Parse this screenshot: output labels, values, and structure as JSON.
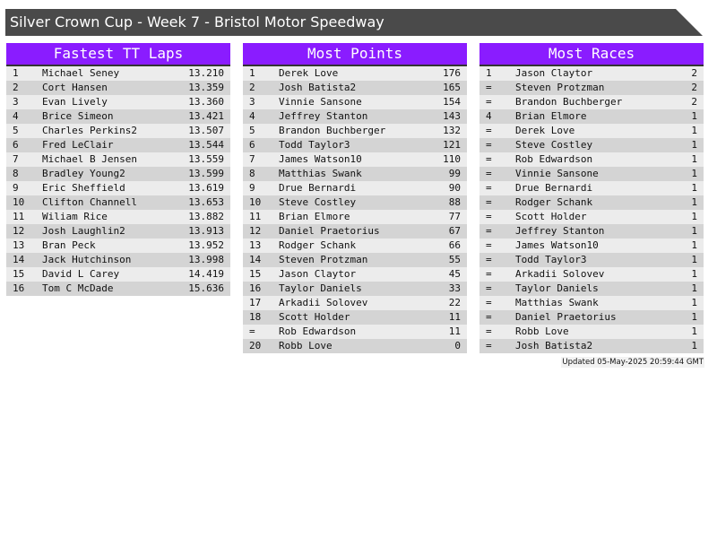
{
  "title": "Silver Crown Cup - Week 7 - Bristol Motor Speedway",
  "updated": "Updated 05-May-2025 20:59:44 GMT",
  "colors": {
    "header": "#8a1cff",
    "title_bar": "#4a4a4a",
    "row_light": "#ececec",
    "row_dark": "#d4d4d4"
  },
  "tables": [
    {
      "heading": "Fastest TT Laps",
      "rows": [
        [
          "1",
          "Michael Seney",
          "13.210"
        ],
        [
          "2",
          "Cort Hansen",
          "13.359"
        ],
        [
          "3",
          "Evan Lively",
          "13.360"
        ],
        [
          "4",
          "Brice Simeon",
          "13.421"
        ],
        [
          "5",
          "Charles Perkins2",
          "13.507"
        ],
        [
          "6",
          "Fred LeClair",
          "13.544"
        ],
        [
          "7",
          "Michael B Jensen",
          "13.559"
        ],
        [
          "8",
          "Bradley Young2",
          "13.599"
        ],
        [
          "9",
          "Eric Sheffield",
          "13.619"
        ],
        [
          "10",
          "Clifton Channell",
          "13.653"
        ],
        [
          "11",
          "Wiliam Rice",
          "13.882"
        ],
        [
          "12",
          "Josh Laughlin2",
          "13.913"
        ],
        [
          "13",
          "Bran Peck",
          "13.952"
        ],
        [
          "14",
          "Jack Hutchinson",
          "13.998"
        ],
        [
          "15",
          "David L Carey",
          "14.419"
        ],
        [
          "16",
          "Tom C McDade",
          "15.636"
        ]
      ]
    },
    {
      "heading": "Most Points",
      "rows": [
        [
          "1",
          "Derek Love",
          "176"
        ],
        [
          "2",
          "Josh Batista2",
          "165"
        ],
        [
          "3",
          "Vinnie Sansone",
          "154"
        ],
        [
          "4",
          "Jeffrey Stanton",
          "143"
        ],
        [
          "5",
          "Brandon Buchberger",
          "132"
        ],
        [
          "6",
          "Todd Taylor3",
          "121"
        ],
        [
          "7",
          "James Watson10",
          "110"
        ],
        [
          "8",
          "Matthias Swank",
          "99"
        ],
        [
          "9",
          "Drue Bernardi",
          "90"
        ],
        [
          "10",
          "Steve Costley",
          "88"
        ],
        [
          "11",
          "Brian Elmore",
          "77"
        ],
        [
          "12",
          "Daniel Praetorius",
          "67"
        ],
        [
          "13",
          "Rodger Schank",
          "66"
        ],
        [
          "14",
          "Steven Protzman",
          "55"
        ],
        [
          "15",
          "Jason Claytor",
          "45"
        ],
        [
          "16",
          "Taylor Daniels",
          "33"
        ],
        [
          "17",
          "Arkadii Solovev",
          "22"
        ],
        [
          "18",
          "Scott Holder",
          "11"
        ],
        [
          "=",
          "Rob Edwardson",
          "11"
        ],
        [
          "20",
          "Robb Love",
          "0"
        ]
      ]
    },
    {
      "heading": "Most Races",
      "rows": [
        [
          "1",
          "Jason Claytor",
          "2"
        ],
        [
          "=",
          "Steven Protzman",
          "2"
        ],
        [
          "=",
          "Brandon Buchberger",
          "2"
        ],
        [
          "4",
          "Brian Elmore",
          "1"
        ],
        [
          "=",
          "Derek Love",
          "1"
        ],
        [
          "=",
          "Steve Costley",
          "1"
        ],
        [
          "=",
          "Rob Edwardson",
          "1"
        ],
        [
          "=",
          "Vinnie Sansone",
          "1"
        ],
        [
          "=",
          "Drue Bernardi",
          "1"
        ],
        [
          "=",
          "Rodger Schank",
          "1"
        ],
        [
          "=",
          "Scott Holder",
          "1"
        ],
        [
          "=",
          "Jeffrey Stanton",
          "1"
        ],
        [
          "=",
          "James Watson10",
          "1"
        ],
        [
          "=",
          "Todd Taylor3",
          "1"
        ],
        [
          "=",
          "Arkadii Solovev",
          "1"
        ],
        [
          "=",
          "Taylor Daniels",
          "1"
        ],
        [
          "=",
          "Matthias Swank",
          "1"
        ],
        [
          "=",
          "Daniel Praetorius",
          "1"
        ],
        [
          "=",
          "Robb Love",
          "1"
        ],
        [
          "=",
          "Josh Batista2",
          "1"
        ]
      ]
    }
  ]
}
